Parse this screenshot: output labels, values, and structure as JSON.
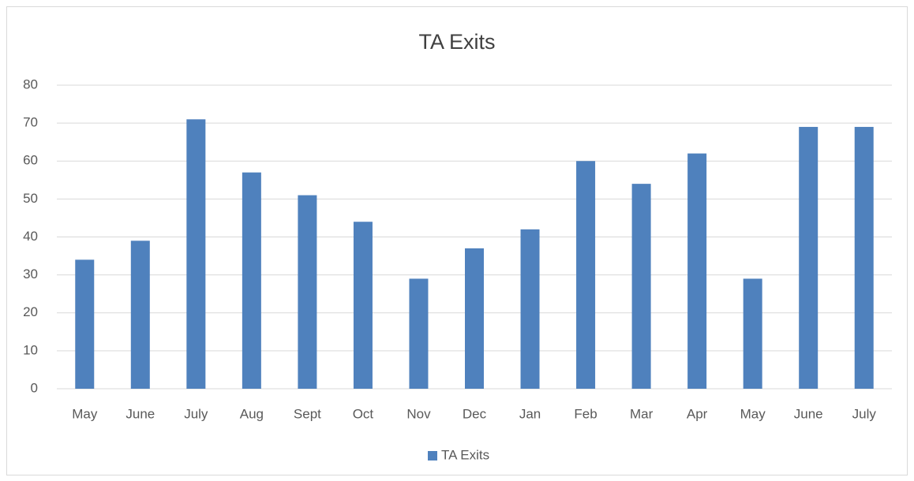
{
  "chart_data": {
    "type": "bar",
    "title": "TA Exits",
    "categories": [
      "May",
      "June",
      "July",
      "Aug",
      "Sept",
      "Oct",
      "Nov",
      "Dec",
      "Jan",
      "Feb",
      "Mar",
      "Apr",
      "May",
      "June",
      "July"
    ],
    "series": [
      {
        "name": "TA Exits",
        "color": "#4f81bd",
        "values": [
          34,
          39,
          71,
          57,
          51,
          44,
          29,
          37,
          42,
          60,
          54,
          62,
          29,
          69,
          69
        ]
      }
    ],
    "ylim": [
      0,
      80
    ],
    "yticks": [
      0,
      10,
      20,
      30,
      40,
      50,
      60,
      70,
      80
    ],
    "grid": true,
    "legend": "bottom"
  }
}
